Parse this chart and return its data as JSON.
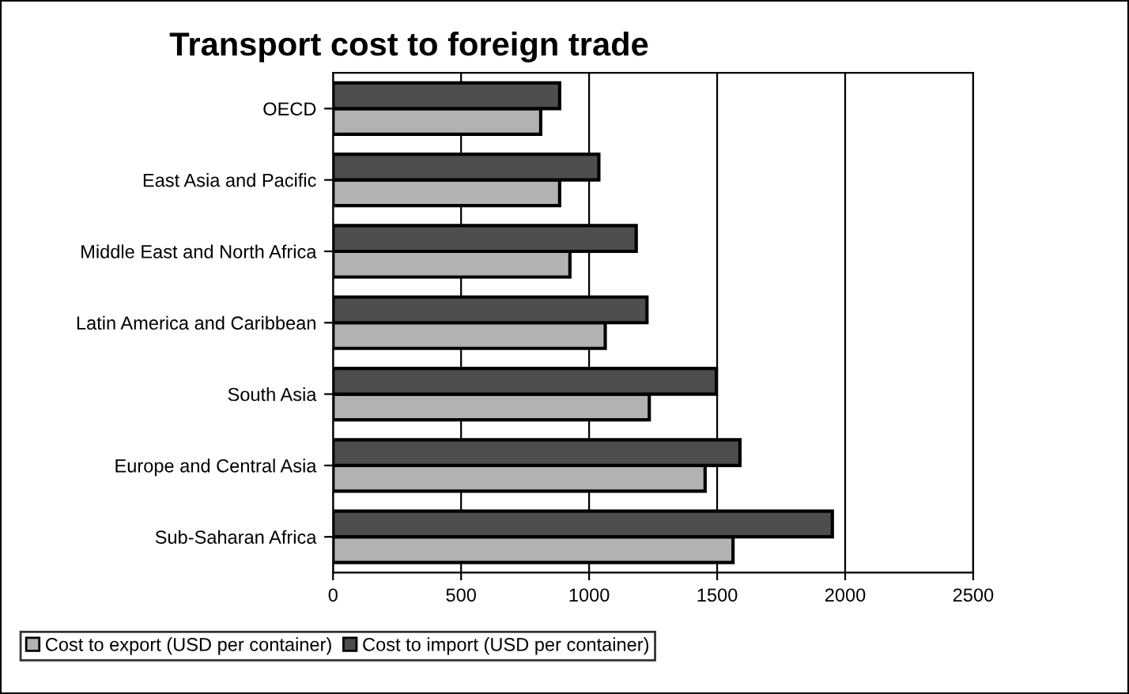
{
  "chart_data": {
    "type": "bar",
    "orientation": "horizontal",
    "title": "Transport cost to foreign trade",
    "categories": [
      "OECD",
      "East Asia and Pacific",
      "Middle East and North Africa",
      "Latin America and Caribbean",
      "South Asia",
      "Europe and Central Asia",
      "Sub-Saharan Africa"
    ],
    "series": [
      {
        "name": "Cost to export (USD per container)",
        "color": "#b2b2b2",
        "values": [
          811,
          885,
          925,
          1063,
          1235,
          1453,
          1562
        ]
      },
      {
        "name": "Cost to import (USD per container)",
        "color": "#4d4d4d",
        "values": [
          885,
          1038,
          1184,
          1226,
          1497,
          1589,
          1950
        ]
      }
    ],
    "xlim": [
      0,
      2500
    ],
    "xticks": [
      0,
      500,
      1000,
      1500,
      2000,
      2500
    ],
    "grid": "x",
    "legend": "bottom"
  }
}
